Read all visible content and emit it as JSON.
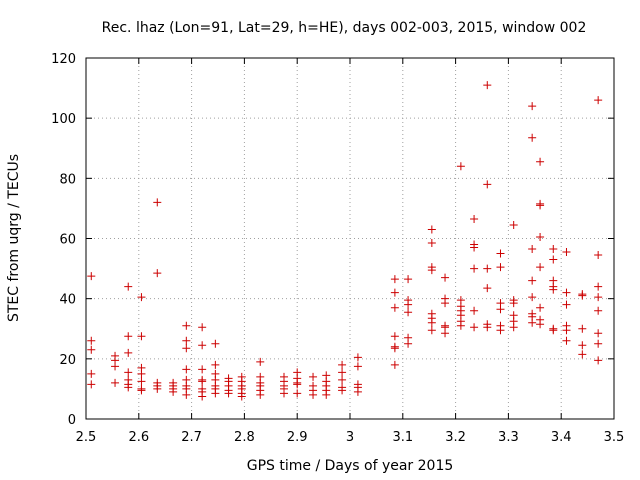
{
  "chart_data": {
    "type": "scatter",
    "title": "Rec. lhaz (Lon=91, Lat=29, h=HE), days 002-003, 2015, window 002",
    "xlabel": "GPS time / Days of year 2015",
    "ylabel": "STEC from uqrg / TECUs",
    "xlim": [
      2.5,
      3.5
    ],
    "ylim": [
      0,
      120
    ],
    "xticks": [
      2.5,
      2.6,
      2.7,
      2.8,
      2.9,
      3.0,
      3.1,
      3.2,
      3.3,
      3.4,
      3.5
    ],
    "xtick_labels": [
      "2.5",
      "2.6",
      "2.7",
      "2.8",
      "2.9",
      "3",
      "3.1",
      "3.2",
      "3.3",
      "3.4",
      "3.5"
    ],
    "yticks": [
      0,
      20,
      40,
      60,
      80,
      100,
      120
    ],
    "ytick_labels": [
      "0",
      "20",
      "40",
      "60",
      "80",
      "100",
      "120"
    ],
    "grid": true,
    "marker": "+",
    "color": "#cc0000",
    "series": [
      {
        "name": "STEC",
        "points": [
          [
            2.51,
            47.5
          ],
          [
            2.51,
            26
          ],
          [
            2.51,
            23
          ],
          [
            2.51,
            15
          ],
          [
            2.51,
            11.5
          ],
          [
            2.555,
            21
          ],
          [
            2.555,
            19.5
          ],
          [
            2.555,
            17.5
          ],
          [
            2.555,
            12
          ],
          [
            2.58,
            44
          ],
          [
            2.58,
            27.5
          ],
          [
            2.58,
            22
          ],
          [
            2.58,
            15.5
          ],
          [
            2.58,
            13
          ],
          [
            2.58,
            11.5
          ],
          [
            2.58,
            10.5
          ],
          [
            2.605,
            40.5
          ],
          [
            2.605,
            27.5
          ],
          [
            2.605,
            17
          ],
          [
            2.605,
            15
          ],
          [
            2.605,
            12.5
          ],
          [
            2.605,
            10
          ],
          [
            2.605,
            9.5
          ],
          [
            2.635,
            72
          ],
          [
            2.635,
            48.5
          ],
          [
            2.635,
            12
          ],
          [
            2.635,
            11
          ],
          [
            2.635,
            10
          ],
          [
            2.665,
            12
          ],
          [
            2.665,
            11
          ],
          [
            2.665,
            10
          ],
          [
            2.665,
            9
          ],
          [
            2.69,
            31
          ],
          [
            2.69,
            26
          ],
          [
            2.69,
            23.5
          ],
          [
            2.69,
            16.5
          ],
          [
            2.69,
            13
          ],
          [
            2.69,
            11
          ],
          [
            2.69,
            10
          ],
          [
            2.69,
            8
          ],
          [
            2.72,
            30.5
          ],
          [
            2.72,
            24.5
          ],
          [
            2.72,
            16.5
          ],
          [
            2.72,
            13
          ],
          [
            2.72,
            12.5
          ],
          [
            2.72,
            10
          ],
          [
            2.72,
            9
          ],
          [
            2.72,
            7.5
          ],
          [
            2.745,
            25
          ],
          [
            2.745,
            18
          ],
          [
            2.745,
            15
          ],
          [
            2.745,
            13
          ],
          [
            2.745,
            11
          ],
          [
            2.745,
            10
          ],
          [
            2.745,
            8.5
          ],
          [
            2.77,
            13.5
          ],
          [
            2.77,
            12.5
          ],
          [
            2.77,
            11
          ],
          [
            2.77,
            9.5
          ],
          [
            2.77,
            8.5
          ],
          [
            2.795,
            14
          ],
          [
            2.795,
            12.5
          ],
          [
            2.795,
            11
          ],
          [
            2.795,
            10
          ],
          [
            2.795,
            8.5
          ],
          [
            2.795,
            7.5
          ],
          [
            2.83,
            19
          ],
          [
            2.83,
            14
          ],
          [
            2.83,
            12
          ],
          [
            2.83,
            11
          ],
          [
            2.83,
            9.5
          ],
          [
            2.83,
            8
          ],
          [
            2.875,
            14
          ],
          [
            2.875,
            12.5
          ],
          [
            2.875,
            11
          ],
          [
            2.875,
            10
          ],
          [
            2.875,
            8.5
          ],
          [
            2.9,
            15.5
          ],
          [
            2.9,
            13.5
          ],
          [
            2.9,
            12
          ],
          [
            2.9,
            11.5
          ],
          [
            2.9,
            8.5
          ],
          [
            2.93,
            14
          ],
          [
            2.93,
            11
          ],
          [
            2.93,
            9.5
          ],
          [
            2.93,
            8
          ],
          [
            2.955,
            14.5
          ],
          [
            2.955,
            12.5
          ],
          [
            2.955,
            11
          ],
          [
            2.955,
            9.5
          ],
          [
            2.955,
            8
          ],
          [
            2.985,
            18
          ],
          [
            2.985,
            15.5
          ],
          [
            2.985,
            13
          ],
          [
            2.985,
            10.5
          ],
          [
            2.985,
            9.5
          ],
          [
            3.015,
            20.5
          ],
          [
            3.015,
            17.5
          ],
          [
            3.015,
            11.5
          ],
          [
            3.015,
            10.5
          ],
          [
            3.015,
            9
          ],
          [
            3.085,
            46.5
          ],
          [
            3.085,
            42
          ],
          [
            3.085,
            37
          ],
          [
            3.085,
            27.5
          ],
          [
            3.085,
            24
          ],
          [
            3.085,
            23.5
          ],
          [
            3.085,
            18
          ],
          [
            3.11,
            46.5
          ],
          [
            3.11,
            39.5
          ],
          [
            3.11,
            38
          ],
          [
            3.11,
            35.5
          ],
          [
            3.11,
            27
          ],
          [
            3.11,
            25
          ],
          [
            3.155,
            63
          ],
          [
            3.155,
            58.5
          ],
          [
            3.155,
            50.5
          ],
          [
            3.155,
            49.5
          ],
          [
            3.155,
            35
          ],
          [
            3.155,
            33.5
          ],
          [
            3.155,
            32
          ],
          [
            3.155,
            29.5
          ],
          [
            3.18,
            47
          ],
          [
            3.18,
            40
          ],
          [
            3.18,
            38.5
          ],
          [
            3.18,
            31
          ],
          [
            3.18,
            30.5
          ],
          [
            3.18,
            28.5
          ],
          [
            3.21,
            84
          ],
          [
            3.21,
            39.5
          ],
          [
            3.21,
            37.5
          ],
          [
            3.21,
            36
          ],
          [
            3.21,
            34.5
          ],
          [
            3.21,
            32.5
          ],
          [
            3.21,
            31
          ],
          [
            3.235,
            66.5
          ],
          [
            3.235,
            58
          ],
          [
            3.235,
            57
          ],
          [
            3.235,
            50
          ],
          [
            3.235,
            36
          ],
          [
            3.235,
            30.5
          ],
          [
            3.26,
            111
          ],
          [
            3.26,
            78
          ],
          [
            3.26,
            50
          ],
          [
            3.26,
            43.5
          ],
          [
            3.26,
            31.5
          ],
          [
            3.26,
            30.5
          ],
          [
            3.285,
            55
          ],
          [
            3.285,
            50.5
          ],
          [
            3.285,
            38.5
          ],
          [
            3.285,
            36.5
          ],
          [
            3.285,
            31
          ],
          [
            3.285,
            29.5
          ],
          [
            3.31,
            64.5
          ],
          [
            3.31,
            39.5
          ],
          [
            3.31,
            38.5
          ],
          [
            3.31,
            34.5
          ],
          [
            3.31,
            32.5
          ],
          [
            3.31,
            30.5
          ],
          [
            3.345,
            104
          ],
          [
            3.345,
            93.5
          ],
          [
            3.345,
            56.5
          ],
          [
            3.345,
            46
          ],
          [
            3.345,
            40.5
          ],
          [
            3.345,
            35
          ],
          [
            3.345,
            34
          ],
          [
            3.345,
            32
          ],
          [
            3.36,
            85.5
          ],
          [
            3.36,
            71.5
          ],
          [
            3.36,
            71
          ],
          [
            3.36,
            60.5
          ],
          [
            3.36,
            50.5
          ],
          [
            3.36,
            37
          ],
          [
            3.36,
            33
          ],
          [
            3.36,
            31.5
          ],
          [
            3.385,
            56.5
          ],
          [
            3.385,
            53
          ],
          [
            3.385,
            46
          ],
          [
            3.385,
            44
          ],
          [
            3.385,
            43
          ],
          [
            3.385,
            30
          ],
          [
            3.385,
            29.5
          ],
          [
            3.41,
            55.5
          ],
          [
            3.41,
            42
          ],
          [
            3.41,
            38
          ],
          [
            3.41,
            31
          ],
          [
            3.41,
            29.5
          ],
          [
            3.41,
            26
          ],
          [
            3.44,
            41.5
          ],
          [
            3.44,
            41
          ],
          [
            3.44,
            30
          ],
          [
            3.44,
            24.5
          ],
          [
            3.44,
            21.5
          ],
          [
            3.47,
            106
          ],
          [
            3.47,
            54.5
          ],
          [
            3.47,
            44
          ],
          [
            3.47,
            40.5
          ],
          [
            3.47,
            36
          ],
          [
            3.47,
            28.5
          ],
          [
            3.47,
            25
          ],
          [
            3.47,
            19.5
          ]
        ]
      }
    ]
  }
}
